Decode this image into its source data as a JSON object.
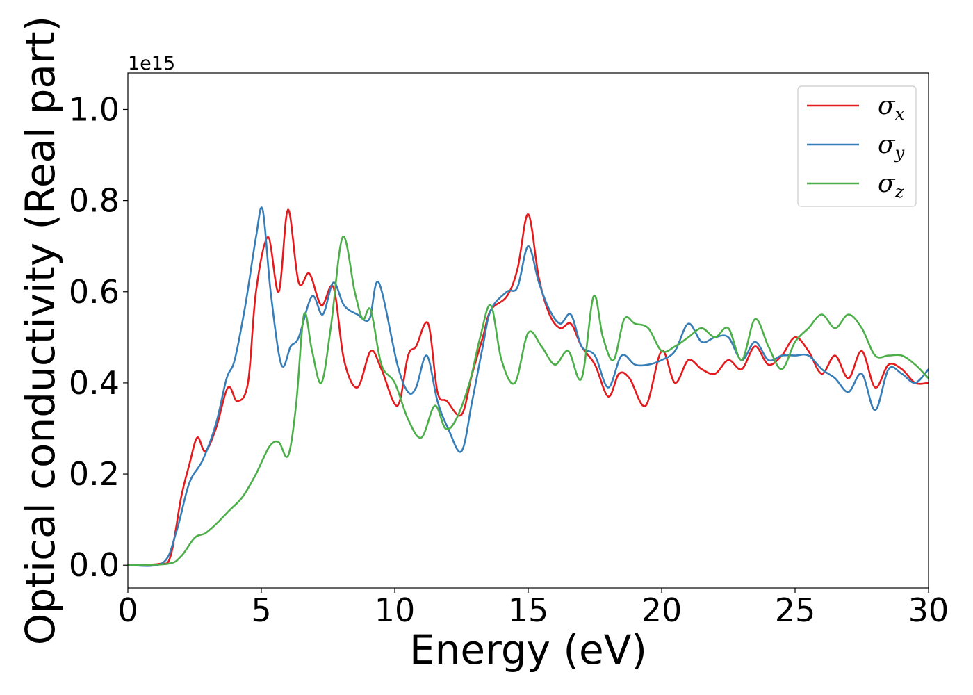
{
  "chart_data": {
    "type": "line",
    "title": "",
    "xlabel": "Energy (eV)",
    "ylabel": "Optical conductivity (Real part)",
    "y_offset_label": "1e15",
    "xlim": [
      0,
      30
    ],
    "ylim": [
      -0.05,
      1.08
    ],
    "xticks": [
      0,
      5,
      10,
      15,
      20,
      25,
      30
    ],
    "xtick_labels": [
      "0",
      "5",
      "10",
      "15",
      "20",
      "25",
      "30"
    ],
    "yticks": [
      0.0,
      0.2,
      0.4,
      0.6,
      0.8,
      1.0
    ],
    "ytick_labels": [
      "0.0",
      "0.2",
      "0.4",
      "0.6",
      "0.8",
      "1.0"
    ],
    "grid": false,
    "legend_position": "upper right",
    "series": [
      {
        "name": "σx",
        "symbol": "σ",
        "subscript": "x",
        "color": "#e41a1c",
        "x": [
          0,
          1.2,
          1.6,
          2.0,
          2.3,
          2.6,
          2.9,
          3.3,
          3.75,
          4.1,
          4.5,
          4.8,
          5.25,
          5.65,
          6.0,
          6.4,
          6.8,
          7.25,
          7.7,
          8.1,
          8.6,
          9.1,
          9.5,
          10.1,
          10.5,
          10.8,
          11.25,
          11.6,
          11.95,
          12.5,
          12.9,
          13.3,
          13.6,
          14.2,
          14.6,
          15.0,
          15.4,
          15.8,
          16.2,
          16.6,
          17.0,
          17.5,
          18.0,
          18.4,
          18.8,
          19.4,
          20.0,
          20.5,
          21.0,
          21.5,
          22.0,
          22.5,
          23.0,
          23.5,
          24.0,
          24.5,
          25.0,
          25.5,
          26.0,
          26.5,
          27.0,
          27.5,
          28.0,
          28.5,
          29.0,
          29.5,
          30.0
        ],
        "y": [
          0,
          0.003,
          0.02,
          0.15,
          0.22,
          0.28,
          0.25,
          0.3,
          0.39,
          0.36,
          0.4,
          0.6,
          0.72,
          0.6,
          0.78,
          0.62,
          0.64,
          0.57,
          0.61,
          0.45,
          0.39,
          0.47,
          0.43,
          0.35,
          0.46,
          0.48,
          0.53,
          0.38,
          0.36,
          0.33,
          0.42,
          0.5,
          0.56,
          0.59,
          0.65,
          0.77,
          0.63,
          0.55,
          0.52,
          0.53,
          0.48,
          0.44,
          0.37,
          0.42,
          0.41,
          0.35,
          0.47,
          0.4,
          0.45,
          0.43,
          0.42,
          0.45,
          0.43,
          0.48,
          0.44,
          0.46,
          0.5,
          0.47,
          0.42,
          0.46,
          0.41,
          0.47,
          0.39,
          0.44,
          0.43,
          0.4,
          0.4
        ]
      },
      {
        "name": "σy",
        "symbol": "σ",
        "subscript": "y",
        "color": "#377eb8",
        "x": [
          0,
          1.3,
          1.8,
          2.3,
          2.8,
          3.3,
          3.7,
          4.0,
          4.4,
          4.8,
          5.05,
          5.35,
          5.75,
          6.1,
          6.4,
          6.9,
          7.3,
          7.7,
          8.1,
          8.6,
          9.05,
          9.4,
          10.1,
          10.5,
          10.8,
          11.2,
          11.6,
          12.0,
          12.5,
          12.9,
          13.3,
          13.6,
          14.2,
          14.6,
          15.0,
          15.4,
          15.8,
          16.2,
          16.6,
          17.0,
          17.5,
          18.0,
          18.5,
          19.0,
          19.5,
          20.0,
          20.5,
          21.0,
          21.5,
          22.0,
          22.5,
          23.0,
          23.5,
          24.0,
          24.5,
          25.0,
          25.5,
          26.0,
          26.5,
          27.0,
          27.5,
          28.0,
          28.5,
          29.0,
          29.5,
          30.0
        ],
        "y": [
          0,
          0.005,
          0.07,
          0.18,
          0.23,
          0.31,
          0.41,
          0.45,
          0.57,
          0.72,
          0.78,
          0.6,
          0.44,
          0.48,
          0.5,
          0.59,
          0.55,
          0.62,
          0.57,
          0.55,
          0.54,
          0.62,
          0.44,
          0.38,
          0.39,
          0.46,
          0.36,
          0.3,
          0.25,
          0.36,
          0.48,
          0.56,
          0.6,
          0.61,
          0.7,
          0.62,
          0.56,
          0.53,
          0.55,
          0.48,
          0.46,
          0.39,
          0.46,
          0.44,
          0.44,
          0.45,
          0.47,
          0.53,
          0.49,
          0.5,
          0.5,
          0.45,
          0.49,
          0.45,
          0.46,
          0.46,
          0.46,
          0.43,
          0.41,
          0.38,
          0.42,
          0.34,
          0.43,
          0.42,
          0.4,
          0.43
        ]
      },
      {
        "name": "σz",
        "symbol": "σ",
        "subscript": "z",
        "color": "#4daf4a",
        "x": [
          0,
          1.5,
          2.0,
          2.5,
          2.9,
          3.3,
          3.8,
          4.3,
          4.8,
          5.3,
          5.65,
          6.0,
          6.3,
          6.6,
          6.9,
          7.25,
          7.6,
          8.05,
          8.5,
          8.8,
          9.1,
          9.5,
          10.0,
          10.5,
          11.0,
          11.5,
          11.9,
          12.3,
          12.8,
          13.2,
          13.6,
          14.0,
          14.5,
          15.0,
          15.5,
          16.0,
          16.5,
          17.0,
          17.45,
          17.8,
          18.2,
          18.6,
          19.0,
          19.5,
          20.0,
          20.5,
          21.0,
          21.5,
          22.0,
          22.5,
          23.0,
          23.5,
          24.0,
          24.5,
          25.0,
          25.5,
          26.0,
          26.5,
          27.0,
          27.5,
          28.0,
          28.5,
          29.0,
          29.5,
          30.0
        ],
        "y": [
          0,
          0.003,
          0.02,
          0.06,
          0.07,
          0.09,
          0.12,
          0.15,
          0.2,
          0.26,
          0.27,
          0.24,
          0.35,
          0.55,
          0.47,
          0.4,
          0.52,
          0.72,
          0.6,
          0.54,
          0.56,
          0.44,
          0.4,
          0.32,
          0.28,
          0.35,
          0.3,
          0.32,
          0.4,
          0.5,
          0.57,
          0.45,
          0.4,
          0.51,
          0.48,
          0.44,
          0.47,
          0.41,
          0.59,
          0.5,
          0.45,
          0.54,
          0.53,
          0.52,
          0.47,
          0.48,
          0.5,
          0.52,
          0.5,
          0.52,
          0.45,
          0.54,
          0.48,
          0.43,
          0.49,
          0.52,
          0.55,
          0.52,
          0.55,
          0.52,
          0.46,
          0.46,
          0.46,
          0.44,
          0.41
        ]
      }
    ]
  }
}
